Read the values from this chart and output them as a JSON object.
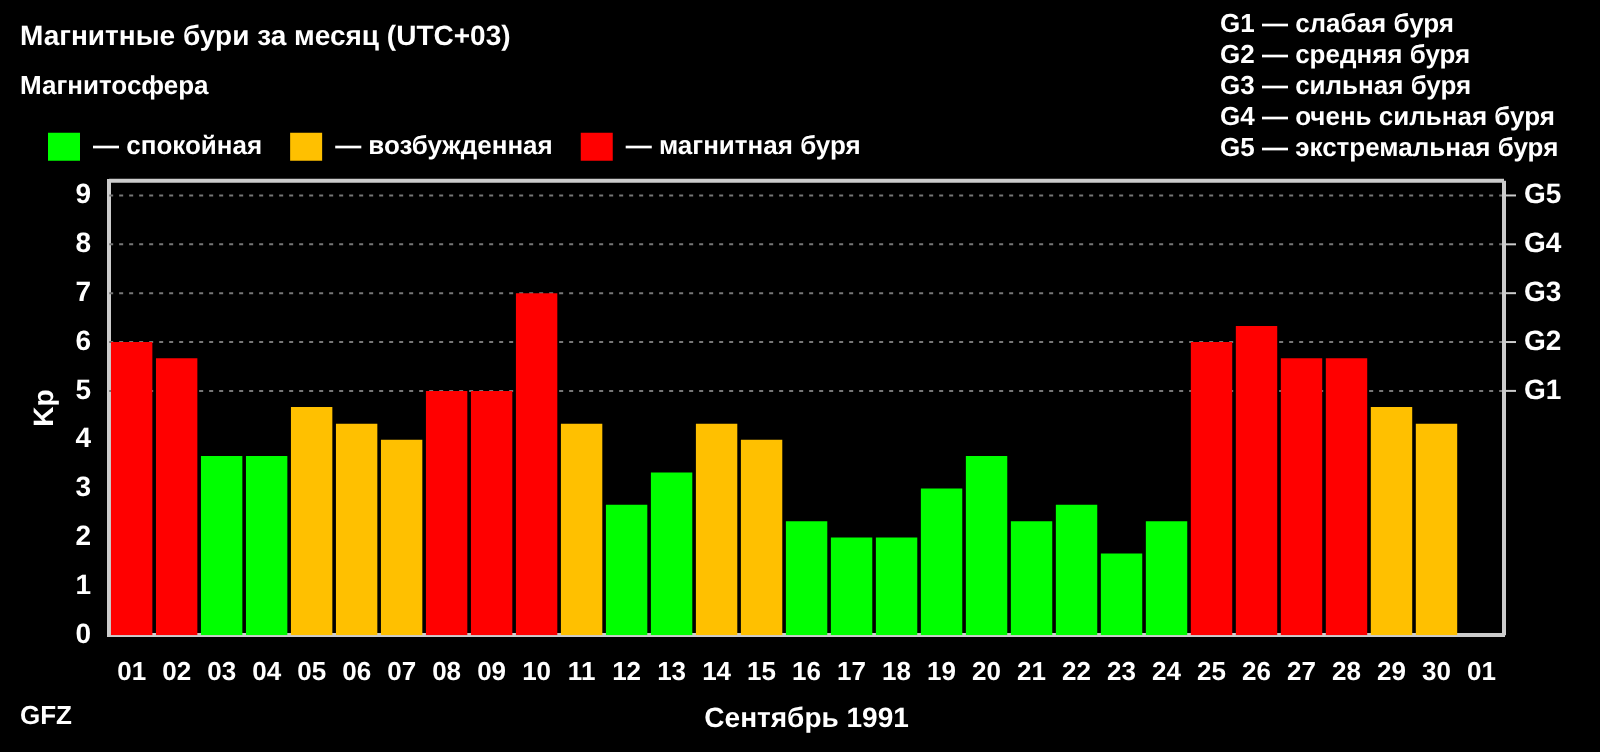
{
  "chart_data": {
    "type": "bar",
    "title": "Магнитные бури за месяц (UTC+03)",
    "legend_title": "Магнитосфера",
    "xlabel": "Сентябрь 1991",
    "ylabel": "Kp",
    "categories": [
      "01",
      "02",
      "03",
      "04",
      "05",
      "06",
      "07",
      "08",
      "09",
      "10",
      "11",
      "12",
      "13",
      "14",
      "15",
      "16",
      "17",
      "18",
      "19",
      "20",
      "21",
      "22",
      "23",
      "24",
      "25",
      "26",
      "27",
      "28",
      "29",
      "30",
      "01"
    ],
    "stacked": true,
    "legend": "top left",
    "series": [
      {
        "name": "— спокойная",
        "color": "#00ff00",
        "values": [
          null,
          null,
          3.67,
          3.67,
          null,
          null,
          null,
          null,
          null,
          null,
          null,
          2.67,
          3.33,
          null,
          null,
          2.33,
          2,
          2,
          3,
          3.67,
          2.33,
          2.67,
          1.67,
          2.33,
          null,
          null,
          null,
          null,
          null,
          null,
          null
        ]
      },
      {
        "name": "— возбужденная",
        "color": "#ffc000",
        "values": [
          null,
          null,
          null,
          null,
          4.67,
          4.33,
          4,
          null,
          null,
          null,
          4.33,
          null,
          null,
          4.33,
          4,
          null,
          null,
          null,
          null,
          null,
          null,
          null,
          null,
          null,
          null,
          null,
          null,
          null,
          4.67,
          4.33,
          null
        ]
      },
      {
        "name": "— магнитная буря",
        "color": "#ff0000",
        "values": [
          6,
          5.67,
          null,
          null,
          null,
          null,
          null,
          5,
          5,
          7,
          null,
          null,
          null,
          null,
          null,
          null,
          null,
          null,
          null,
          null,
          null,
          null,
          null,
          null,
          6,
          6.33,
          5.67,
          5.67,
          null,
          null,
          null
        ]
      }
    ],
    "ylim": [
      0,
      9.3
    ],
    "yticks": [
      0,
      1,
      2,
      3,
      4,
      5,
      6,
      7,
      8,
      9
    ],
    "ref_lines": [
      {
        "axis": "y",
        "value": 5,
        "label": "G1",
        "color": "#777777",
        "line_style": "dotted"
      },
      {
        "axis": "y",
        "value": 6,
        "label": "G2",
        "color": "#777777",
        "line_style": "dotted"
      },
      {
        "axis": "y",
        "value": 7,
        "label": "G3",
        "color": "#777777",
        "line_style": "dotted"
      },
      {
        "axis": "y",
        "value": 8,
        "label": "G4",
        "color": "#777777",
        "line_style": "dotted"
      },
      {
        "axis": "y",
        "value": 9,
        "label": "G5",
        "color": "#777777",
        "line_style": "dotted"
      }
    ],
    "annotations": [
      "G1 — слабая буря",
      "G2 — средняя буря",
      "G3 — сильная буря",
      "G4 — очень сильная буря",
      "G5 — экстремальная буря",
      "GFZ"
    ]
  }
}
